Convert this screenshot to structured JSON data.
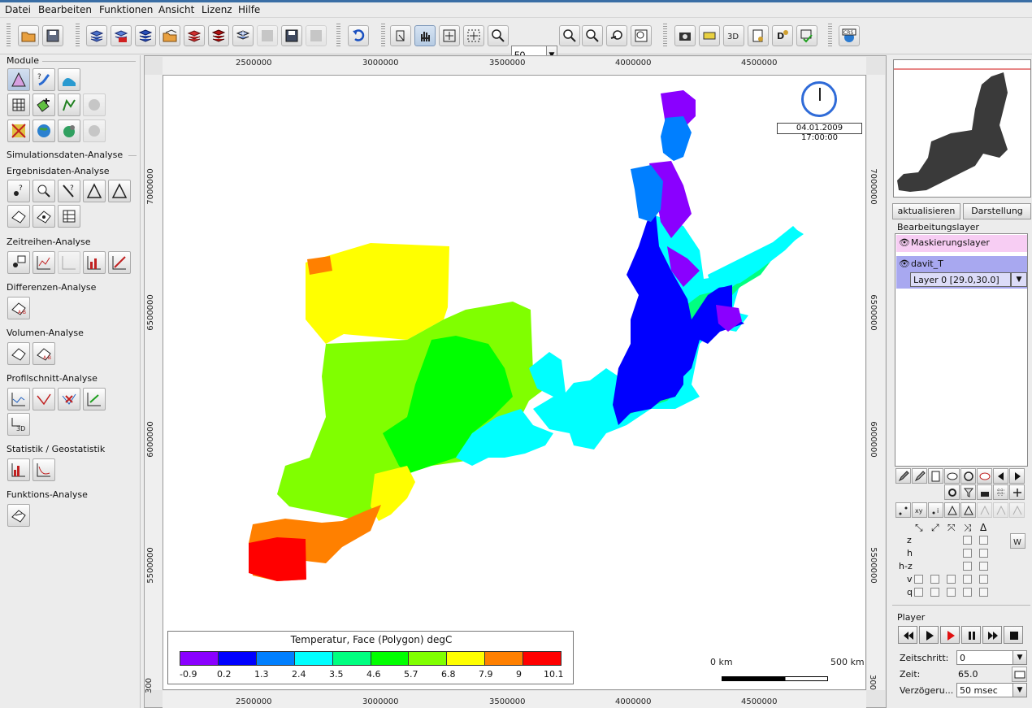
{
  "menu": [
    "Datei",
    "Bearbeiten",
    "Funktionen",
    "Ansicht",
    "Lizenz",
    "Hilfe"
  ],
  "toolbar": {
    "zoom_value": "50"
  },
  "left_panel": {
    "modules_title": "Module",
    "sim_title": "Simulationsdaten-Analyse",
    "sections": [
      "Ergebnisdaten-Analyse",
      "Zeitreihen-Analyse",
      "Differenzen-Analyse",
      "Volumen-Analyse",
      "Profilschnitt-Analyse",
      "Statistik / Geostatistik",
      "Funktions-Analyse"
    ]
  },
  "map": {
    "x_ticks": [
      "2500000",
      "3000000",
      "3500000",
      "4000000",
      "4500000"
    ],
    "y_ticks": [
      "7000000",
      "6500000",
      "6000000",
      "5500000",
      "300"
    ],
    "timestamp": "04.01.2009 17:00:00",
    "legend_title": "Temperatur, Face (Polygon) degC",
    "legend_labels": [
      "-0.9",
      "0.2",
      "1.3",
      "2.4",
      "3.5",
      "4.6",
      "5.7",
      "6.8",
      "7.9",
      "9",
      "10.1"
    ],
    "legend_colors": [
      "#8a00ff",
      "#0000ff",
      "#007fff",
      "#00ffff",
      "#00ff80",
      "#00ff00",
      "#80ff00",
      "#ffff00",
      "#ff8000",
      "#ff0000"
    ],
    "scale_start": "0 km",
    "scale_end": "500 km"
  },
  "right_panel": {
    "btn_update": "aktualisieren",
    "btn_display": "Darstellung",
    "layers_title": "Bearbeitungslayer",
    "layer1": "Maskierungslayer",
    "layer2": "davit_T",
    "layer_select": "Layer 0 [29.0,30.0]",
    "vars": [
      "z",
      "h",
      "h-z",
      "v",
      "q"
    ],
    "player_title": "Player",
    "zeitschritt_label": "Zeitschritt:",
    "zeitschritt_value": "0",
    "zeit_label": "Zeit:",
    "zeit_value": "65.0",
    "delay_label": "Verzögeru...",
    "delay_value": "50 msec"
  }
}
